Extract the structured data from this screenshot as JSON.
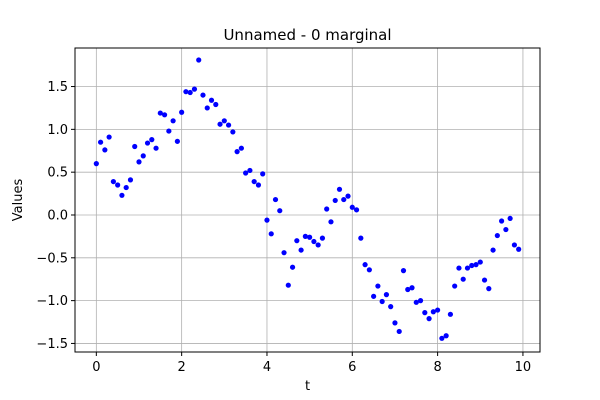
{
  "chart_data": {
    "type": "scatter",
    "title": "Unnamed - 0 marginal",
    "xlabel": "t",
    "ylabel": "Values",
    "xlim": [
      -0.5,
      10.4
    ],
    "ylim": [
      -1.6,
      1.95
    ],
    "xticks": [
      0,
      2,
      4,
      6,
      8,
      10
    ],
    "yticks": [
      -1.5,
      -1.0,
      -0.5,
      0.0,
      0.5,
      1.0,
      1.5
    ],
    "xtick_labels": [
      "0",
      "2",
      "4",
      "6",
      "8",
      "10"
    ],
    "ytick_labels": [
      "−1.5",
      "−1.0",
      "−0.5",
      "0.0",
      "0.5",
      "1.0",
      "1.5"
    ],
    "grid": true,
    "marker_color": "#0000ff",
    "series": [
      {
        "x": [
          0.0,
          0.1,
          0.2,
          0.3,
          0.4,
          0.5,
          0.6,
          0.7,
          0.8,
          0.9,
          1.0,
          1.1,
          1.2,
          1.3,
          1.4,
          1.5,
          1.6,
          1.7,
          1.8,
          1.9,
          2.0,
          2.1,
          2.2,
          2.3,
          2.4,
          2.5,
          2.6,
          2.7,
          2.8,
          2.9,
          3.0,
          3.1,
          3.2,
          3.3,
          3.4,
          3.5,
          3.6,
          3.7,
          3.8,
          3.9,
          4.0,
          4.1,
          4.2,
          4.3,
          4.4,
          4.5,
          4.6,
          4.7,
          4.8,
          4.9,
          5.0,
          5.1,
          5.2,
          5.3,
          5.4,
          5.5,
          5.6,
          5.7,
          5.8,
          5.9,
          6.0,
          6.1,
          6.2,
          6.3,
          6.4,
          6.5,
          6.6,
          6.7,
          6.8,
          6.9,
          7.0,
          7.1,
          7.2,
          7.3,
          7.4,
          7.5,
          7.6,
          7.7,
          7.8,
          7.9,
          8.0,
          8.1,
          8.2,
          8.3,
          8.4,
          8.5,
          8.6,
          8.7,
          8.8,
          8.9,
          9.0,
          9.1,
          9.2,
          9.3,
          9.4,
          9.5,
          9.6,
          9.7,
          9.8,
          9.9
        ],
        "y": [
          0.6,
          0.85,
          0.76,
          0.91,
          0.39,
          0.35,
          0.23,
          0.32,
          0.41,
          0.8,
          0.62,
          0.69,
          0.84,
          0.88,
          0.78,
          1.19,
          1.17,
          0.98,
          1.1,
          0.86,
          1.2,
          1.44,
          1.43,
          1.47,
          1.81,
          1.4,
          1.25,
          1.34,
          1.29,
          1.06,
          1.1,
          1.05,
          0.97,
          0.74,
          0.78,
          0.49,
          0.52,
          0.39,
          0.35,
          0.48,
          -0.06,
          -0.22,
          0.18,
          0.05,
          -0.44,
          -0.82,
          -0.61,
          -0.3,
          -0.41,
          -0.25,
          -0.26,
          -0.31,
          -0.35,
          -0.27,
          0.07,
          -0.08,
          0.17,
          0.3,
          0.18,
          0.22,
          0.09,
          0.06,
          -0.27,
          -0.58,
          -0.64,
          -0.95,
          -0.83,
          -1.01,
          -0.93,
          -1.07,
          -1.26,
          -1.36,
          -0.65,
          -0.87,
          -0.85,
          -1.02,
          -1.0,
          -1.14,
          -1.21,
          -1.13,
          -1.11,
          -1.44,
          -1.41,
          -1.16,
          -0.83,
          -0.62,
          -0.75,
          -0.62,
          -0.59,
          -0.58,
          -0.55,
          -0.76,
          -0.86,
          -0.41,
          -0.24,
          -0.07,
          -0.17,
          -0.04,
          -0.35,
          -0.4
        ]
      }
    ]
  }
}
